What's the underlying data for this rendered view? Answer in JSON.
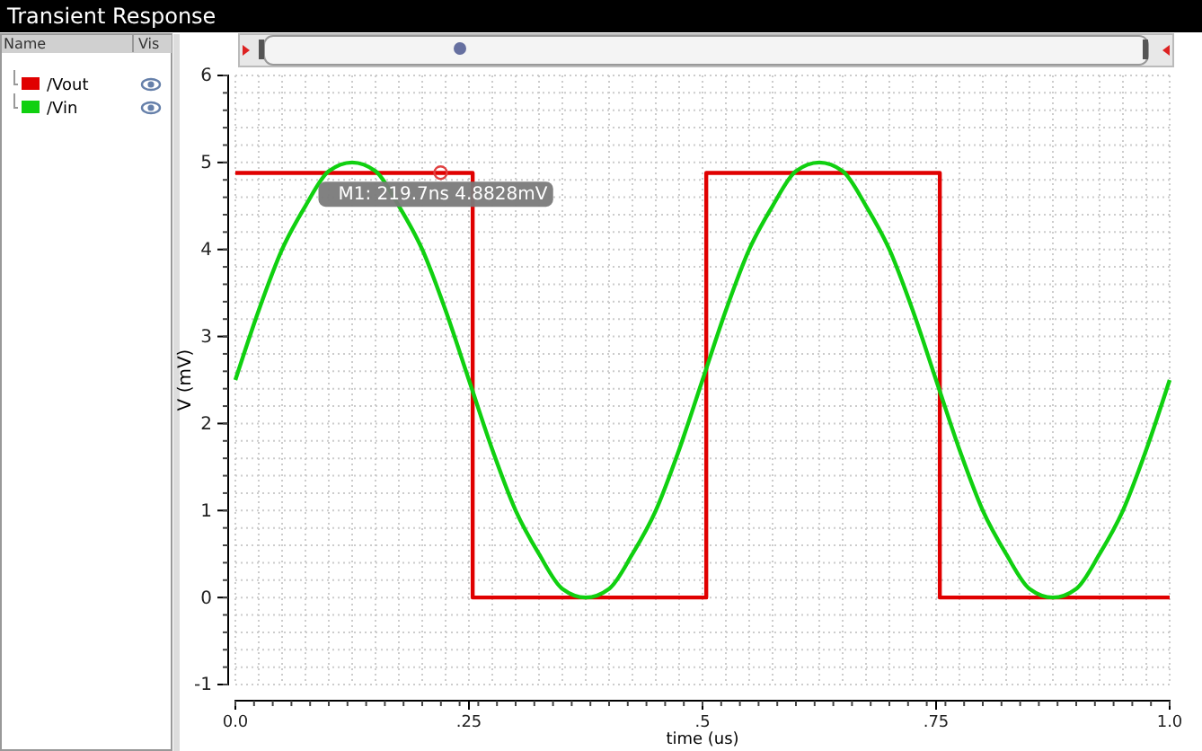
{
  "chart_data": {
    "type": "line",
    "title": "Transient Response",
    "xlabel": "time (us)",
    "ylabel": "V (mV)",
    "legend": "left",
    "grid": true,
    "line_style": "solid",
    "marker": "none",
    "xlim": [
      0,
      1.0
    ],
    "xticks": [
      {
        "value": 0,
        "label": "0.0"
      },
      {
        "value": 0.25,
        "label": ".25"
      },
      {
        "value": 0.5,
        "label": ".5"
      },
      {
        "value": 0.75,
        "label": ".75"
      },
      {
        "value": 1.0,
        "label": "1.0"
      }
    ],
    "ylim": [
      -1,
      6
    ],
    "yticks": [
      -1,
      0,
      1,
      2,
      3,
      4,
      5,
      6
    ],
    "annotations": [
      "Name",
      "Vis",
      {
        "text": "M1: 219.7ns 4.8828mV",
        "x": 0.2197,
        "y": 4.8828
      }
    ],
    "series": [
      {
        "name": "/Vout",
        "color": "#e00000",
        "type": "step",
        "x": [
          0,
          0.254,
          0.504,
          0.754,
          1.0
        ],
        "values": [
          4.88,
          0,
          4.88,
          0,
          0
        ]
      },
      {
        "name": "/Vin",
        "color": "#10d010",
        "x": [
          0,
          0.025,
          0.05,
          0.075,
          0.1,
          0.125,
          0.15,
          0.175,
          0.2,
          0.225,
          0.25,
          0.275,
          0.3,
          0.325,
          0.35,
          0.375,
          0.4,
          0.425,
          0.45,
          0.475,
          0.5,
          0.525,
          0.55,
          0.575,
          0.6,
          0.625,
          0.65,
          0.675,
          0.7,
          0.725,
          0.75,
          0.775,
          0.8,
          0.825,
          0.85,
          0.875,
          0.9,
          0.925,
          0.95,
          0.975,
          1.0
        ],
        "values": [
          2.5,
          3.3,
          4.0,
          4.5,
          4.9,
          5.0,
          4.9,
          4.5,
          4.0,
          3.3,
          2.5,
          1.7,
          1.0,
          0.5,
          0.1,
          0,
          0.1,
          0.5,
          1.0,
          1.7,
          2.5,
          3.3,
          4.0,
          4.5,
          4.9,
          5.0,
          4.9,
          4.5,
          4.0,
          3.3,
          2.5,
          1.7,
          1.0,
          0.5,
          0.1,
          0,
          0.1,
          0.5,
          1.0,
          1.7,
          2.5
        ]
      }
    ]
  }
}
